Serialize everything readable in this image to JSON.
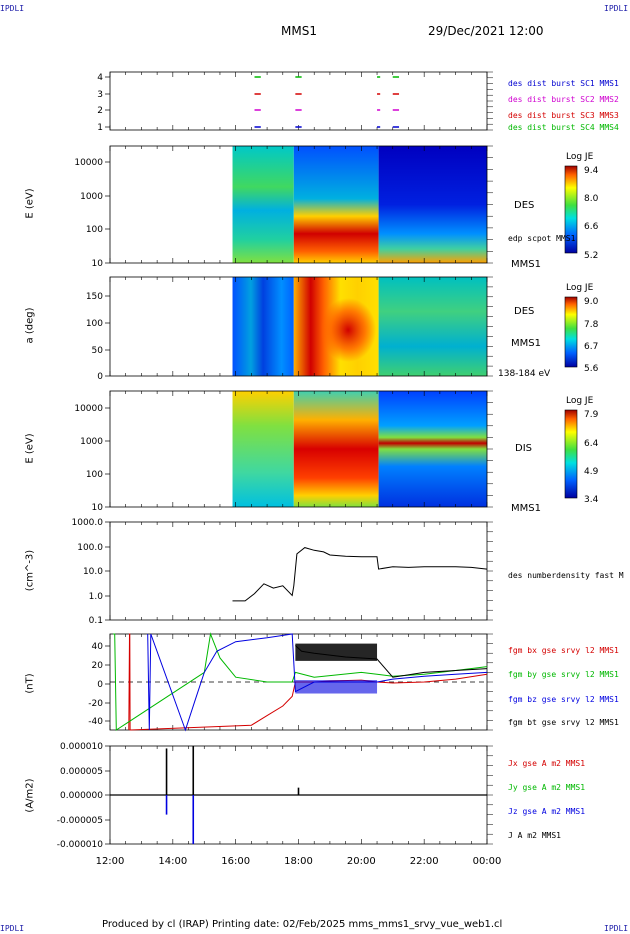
{
  "corner_tl": "IPDLI",
  "corner_tr": "IPDLI",
  "corner_bl": "IPDLI",
  "corner_br": "IPDLI",
  "header": {
    "spacecraft": "MMS1",
    "datetime": "29/Dec/2021 12:00"
  },
  "footer": "Produced by cl (IRAP)    Printing date: 02/Feb/2025    mms_mms1_srvy_vue_web1.cl",
  "colors": {
    "red": "#d40000",
    "green": "#00c400",
    "blue": "#0000e0",
    "magenta": "#e000e0",
    "black": "#000000"
  },
  "chart_data": [
    {
      "type": "scatter",
      "name": "burst",
      "yticks": [
        "1",
        "2",
        "3",
        "4"
      ],
      "legend": [
        {
          "text": "des dist burst SC1 MMS1",
          "color": "#0000d0"
        },
        {
          "text": "des dist burst SC2 MMS2",
          "color": "#d000d0"
        },
        {
          "text": "des dist burst SC3 MMS3",
          "color": "#d40000"
        },
        {
          "text": "des dist burst SC4 MMS4",
          "color": "#00b800"
        }
      ],
      "intervals": [
        [
          16.6,
          16.8
        ],
        [
          17.9,
          18.1
        ],
        [
          20.5,
          20.6
        ],
        [
          21.0,
          21.2
        ]
      ]
    },
    {
      "type": "heatmap",
      "name": "des-energy",
      "ylabel": "E (eV)",
      "yticks": [
        "10",
        "100",
        "1000",
        "10000"
      ],
      "right_label": "DES",
      "right_sub": "MMS1",
      "right_note": "edp scpot MMS1",
      "colorbar": {
        "title": "Log JE",
        "ticks": [
          "9.4",
          "8.0",
          "6.6",
          "5.2"
        ]
      },
      "data_start_h": 15.9
    },
    {
      "type": "heatmap",
      "name": "des-pitch",
      "ylabel": "a (deg)",
      "yticks": [
        "0",
        "50",
        "100",
        "150"
      ],
      "right_label": "DES",
      "right_sub": "MMS1",
      "right_note": "138-184 eV",
      "colorbar": {
        "title": "Log JE",
        "ticks": [
          "9.0",
          "7.8",
          "6.7",
          "5.6"
        ]
      },
      "data_start_h": 15.9
    },
    {
      "type": "heatmap",
      "name": "dis-energy",
      "ylabel": "E (eV)",
      "yticks": [
        "10",
        "100",
        "1000",
        "10000"
      ],
      "right_label": "DIS",
      "right_sub": "MMS1",
      "colorbar": {
        "title": "Log JE",
        "ticks": [
          "7.9",
          "6.4",
          "4.9",
          "3.4"
        ]
      },
      "data_start_h": 15.9
    },
    {
      "type": "line",
      "name": "density",
      "ylabel": "(cm^-3)",
      "yticks": [
        "0.1",
        "1.0",
        "10.0",
        "100.0",
        "1000.0"
      ],
      "series": [
        {
          "name": "des numberdensity fast M",
          "color": "#000000",
          "x": [
            15.9,
            16.3,
            16.6,
            16.9,
            17.2,
            17.5,
            17.8,
            17.85,
            17.95,
            18.2,
            18.5,
            18.8,
            19.0,
            19.5,
            20.0,
            20.5,
            20.55,
            21.0,
            21.5,
            22.0,
            22.5,
            23.0,
            23.5,
            24.0
          ],
          "y": [
            0.6,
            0.6,
            1.2,
            3.0,
            2.0,
            2.5,
            1.0,
            2.5,
            50,
            90,
            70,
            60,
            45,
            40,
            38,
            38,
            12,
            15,
            14,
            15,
            15,
            15,
            14,
            12
          ]
        }
      ]
    },
    {
      "type": "line",
      "name": "bfield",
      "ylabel": "(nT)",
      "yticks": [
        "-40",
        "-20",
        "0",
        "20",
        "40"
      ],
      "ylim": [
        -50,
        50
      ],
      "series": [
        {
          "name": "fgm bx gse srvy l2 MMS1",
          "color": "#d40000",
          "x": [
            12.6,
            12.62,
            12.63,
            12.64,
            16.5,
            17.0,
            17.5,
            17.8,
            17.9,
            18.5,
            19.0,
            20.0,
            20.5,
            21.0,
            22.0,
            23.0,
            24.0
          ],
          "y": [
            -50,
            50,
            50,
            -50,
            -45,
            -35,
            -25,
            -15,
            0,
            0,
            1,
            2,
            0,
            -1,
            0,
            3,
            8
          ]
        },
        {
          "name": "fgm by gse srvy l2 MMS1",
          "color": "#00b800",
          "x": [
            12.1,
            12.15,
            12.2,
            15.0,
            15.2,
            15.5,
            16.0,
            17.0,
            17.8,
            17.9,
            18.5,
            20.0,
            20.5,
            21.0,
            22.0,
            23.0,
            24.0
          ],
          "y": [
            50,
            50,
            -50,
            10,
            50,
            25,
            5,
            0,
            0,
            10,
            5,
            10,
            8,
            6,
            8,
            12,
            16
          ]
        },
        {
          "name": "fgm bz gse srvy l2 MMS1",
          "color": "#0000e0",
          "x": [
            13.2,
            13.25,
            13.3,
            14.4,
            14.7,
            15.0,
            15.4,
            16.0,
            17.0,
            17.8,
            17.9,
            18.5,
            19.0,
            20.0,
            20.5,
            21.0,
            22.0,
            23.0,
            24.0
          ],
          "y": [
            50,
            -50,
            50,
            -50,
            -20,
            10,
            32,
            42,
            46,
            50,
            -10,
            0,
            0,
            0,
            0,
            3,
            6,
            8,
            10
          ]
        },
        {
          "name": "fgm bt gse srvy l2 MMS1",
          "color": "#000000",
          "x": [
            17.9,
            18.1,
            18.5,
            19.0,
            19.5,
            20.0,
            20.5,
            21.0,
            22.0,
            23.0,
            24.0
          ],
          "y": [
            38,
            32,
            30,
            28,
            26,
            25,
            24,
            5,
            10,
            12,
            14
          ]
        }
      ]
    },
    {
      "type": "line",
      "name": "current",
      "ylabel": "(A/m2)",
      "yticks": [
        "-0.000010",
        "-0.000005",
        "0.000000",
        "0.000005",
        "0.000010"
      ],
      "ylim": [
        -1e-05,
        1e-05
      ],
      "series": [
        {
          "name": "Jx gse A m2 MMS1",
          "color": "#d40000"
        },
        {
          "name": "Jy gse A m2 MMS1",
          "color": "#00b800"
        },
        {
          "name": "Jz gse A m2 MMS1",
          "color": "#0000e0"
        },
        {
          "name": "J A m2 MMS1",
          "color": "#000000"
        }
      ],
      "spikes": [
        {
          "x": 13.8,
          "y": 9.5e-06,
          "color": "#000000"
        },
        {
          "x": 13.8,
          "y": -4e-06,
          "color": "#0000e0"
        },
        {
          "x": 14.65,
          "y": 1e-05,
          "color": "#000000"
        },
        {
          "x": 14.65,
          "y": -1e-05,
          "color": "#0000e0"
        },
        {
          "x": 18.0,
          "y": 1.5e-06,
          "color": "#000000"
        }
      ]
    }
  ],
  "xaxis": {
    "ticks": [
      "12:00",
      "14:00",
      "16:00",
      "18:00",
      "20:00",
      "22:00",
      "00:00"
    ]
  }
}
